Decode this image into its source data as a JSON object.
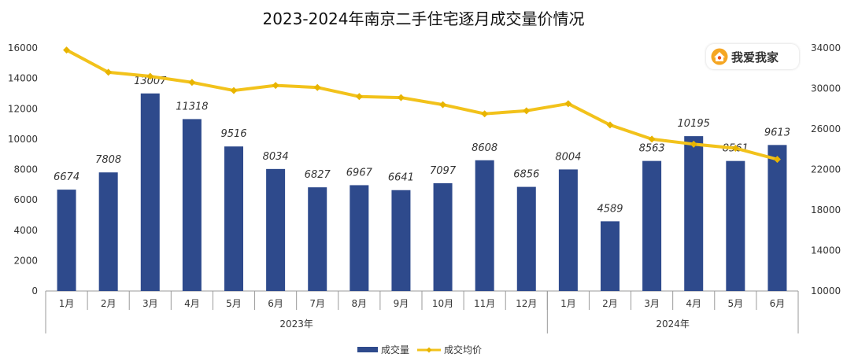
{
  "title": "2023-2024年南京二手住宅逐月成交量价情况",
  "logo": {
    "text": "我爱我家",
    "icon": "house-logo-icon"
  },
  "colors": {
    "bar": "#2E4A8C",
    "line": "#F2C21B",
    "marker": "#E8B400",
    "axis": "#9a9a9a"
  },
  "chart_data": {
    "type": "bar",
    "categories": [
      "1月",
      "2月",
      "3月",
      "4月",
      "5月",
      "6月",
      "7月",
      "8月",
      "9月",
      "10月",
      "11月",
      "12月",
      "1月",
      "2月",
      "3月",
      "4月",
      "5月",
      "6月"
    ],
    "groups": [
      {
        "label": "2023年",
        "count": 12
      },
      {
        "label": "2024年",
        "count": 6
      }
    ],
    "series": [
      {
        "name": "成交量",
        "type": "bar",
        "axis": "left",
        "values": [
          6674,
          7808,
          13007,
          11318,
          9516,
          8034,
          6827,
          6967,
          6641,
          7097,
          8608,
          6856,
          8004,
          4589,
          8563,
          10195,
          8561,
          9613
        ]
      },
      {
        "name": "成交均价",
        "type": "line",
        "axis": "right",
        "values": [
          33800,
          31600,
          31200,
          30600,
          29800,
          30300,
          30100,
          29200,
          29100,
          28400,
          27500,
          27800,
          28500,
          26400,
          25000,
          24500,
          24100,
          23000
        ]
      }
    ],
    "ylim_left": [
      0,
      16000
    ],
    "yticks_left": [
      0,
      2000,
      4000,
      6000,
      8000,
      10000,
      12000,
      14000,
      16000
    ],
    "ylim_right": [
      10000,
      34000
    ],
    "yticks_right": [
      10000,
      14000,
      18000,
      22000,
      26000,
      30000,
      34000
    ],
    "xlabel": "",
    "ylabel": "",
    "grid": false,
    "legend": "bottom-center"
  }
}
